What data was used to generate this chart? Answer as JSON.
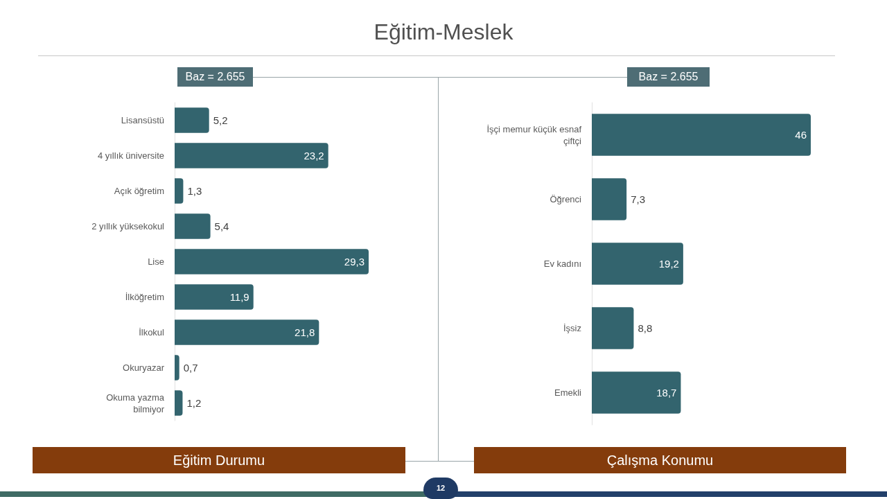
{
  "chart_data": [
    {
      "type": "bar",
      "orientation": "horizontal",
      "title": "Eğitim Durumu",
      "subtitle": "Baz = 2.655",
      "annotations": [
        "Eğitim-Meslek",
        "12"
      ],
      "categories": [
        "Lisansüstü",
        "4 yıllık üniversite",
        "Açık öğretim",
        "2 yıllık yüksekokul",
        "Lise",
        "İlköğretim",
        "İlkokul",
        "Okuryazar",
        "Okuma yazma bilmiyor"
      ],
      "values": [
        5.2,
        23.2,
        1.3,
        5.4,
        29.3,
        11.9,
        21.8,
        0.7,
        1.2
      ],
      "value_labels": [
        "5,2",
        "23,2",
        "1,3",
        "5,4",
        "29,3",
        "11,9",
        "21,8",
        "0,7",
        "1,2"
      ],
      "color": "#33646e",
      "tick_labels": "y"
    },
    {
      "type": "bar",
      "orientation": "horizontal",
      "title": "Çalışma Konumu",
      "subtitle": "Baz = 2.655",
      "categories": [
        "İşçi memur küçük esnaf çiftçi",
        "Öğrenci",
        "Ev kadını",
        "İşsiz",
        "Emekli"
      ],
      "values": [
        46,
        7.3,
        19.2,
        8.8,
        18.7
      ],
      "value_labels": [
        "46",
        "7,3",
        "19,2",
        "8,8",
        "18,7"
      ],
      "color": "#33646e",
      "tick_labels": "y"
    }
  ]
}
